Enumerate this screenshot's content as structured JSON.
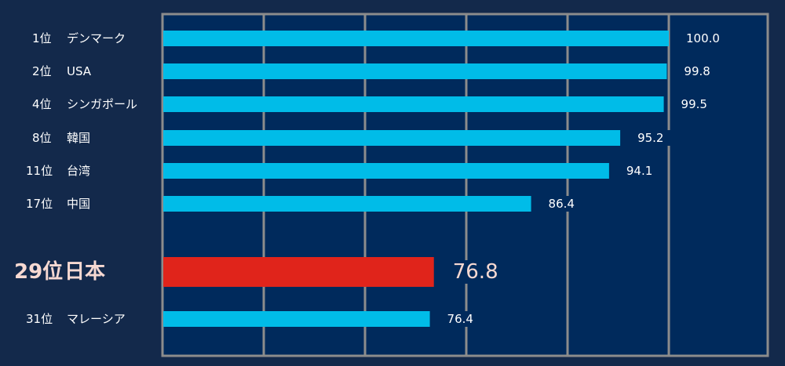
{
  "colors": {
    "page_background": "#13294b",
    "plot_background": "#002a5c",
    "grid": "#8c8c8c",
    "bar": "#00bce8",
    "highlight_bar": "#e0241b",
    "label_text": "#ffffff",
    "highlight_text": "#f7d9d2"
  },
  "chart_data": {
    "type": "bar",
    "orientation": "horizontal",
    "xlim": [
      50,
      100
    ],
    "x_gridlines": [
      50,
      60,
      70,
      80,
      90,
      100
    ],
    "grid": true,
    "legend": "none",
    "categories": [
      "1位　デンマーク",
      "2位　USA",
      "4位　シンガポール",
      "8位　韓国",
      "11位　台湾",
      "17位　中国",
      "29位 日本",
      "31位　マレーシア"
    ],
    "ranks": [
      "1位",
      "2位",
      "4位",
      "8位",
      "11位",
      "17位",
      "29位",
      "31位"
    ],
    "countries": [
      "デンマーク",
      "USA",
      "シンガポール",
      "韓国",
      "台湾",
      "中国",
      "日本",
      "マレーシア"
    ],
    "values": [
      100.0,
      99.8,
      99.5,
      95.2,
      94.1,
      86.4,
      76.8,
      76.4
    ],
    "value_labels": [
      "100.0",
      "99.8",
      "99.5",
      "95.2",
      "94.1",
      "86.4",
      "76.8",
      "76.4"
    ],
    "highlight_index": 6
  }
}
